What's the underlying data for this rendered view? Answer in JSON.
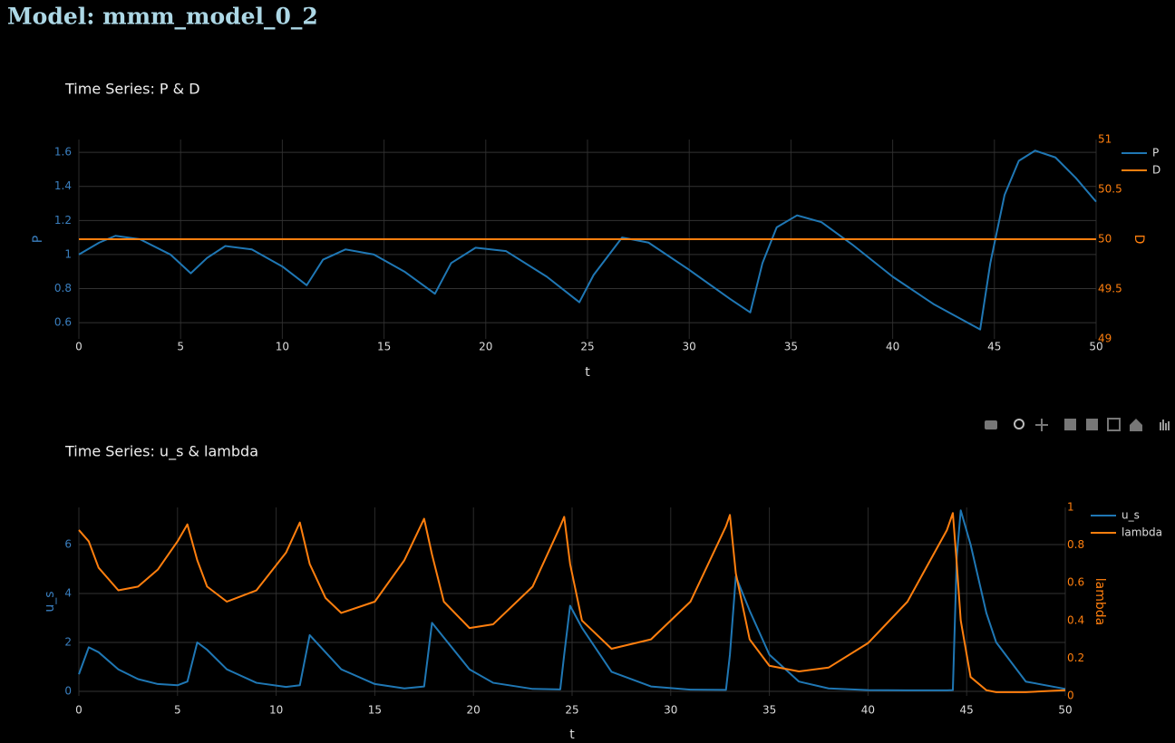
{
  "title": "Model: mmm_model_0_2",
  "chart_data": [
    {
      "type": "line",
      "title": "Time Series: P & D",
      "xlabel": "t",
      "ylabel": "P",
      "y2label": "D",
      "x": [
        0,
        1,
        1.8,
        3,
        4.5,
        5.5,
        6.3,
        7.2,
        8.5,
        10,
        11.2,
        12,
        13.1,
        14.5,
        16,
        17.5,
        18.3,
        19.5,
        21,
        23,
        24.6,
        25.3,
        26.7,
        28,
        30,
        32,
        33,
        33.6,
        34.3,
        35.3,
        36.5,
        38,
        40,
        42,
        44.3,
        44.8,
        45.5,
        46.2,
        47,
        48,
        49,
        50
      ],
      "series": [
        {
          "name": "P",
          "color": "#1f77b4",
          "axis": "y",
          "values": [
            1.0,
            1.07,
            1.11,
            1.09,
            1.0,
            0.89,
            0.98,
            1.05,
            1.03,
            0.93,
            0.82,
            0.97,
            1.03,
            1.0,
            0.9,
            0.77,
            0.95,
            1.04,
            1.02,
            0.87,
            0.72,
            0.88,
            1.1,
            1.07,
            0.91,
            0.74,
            0.66,
            0.95,
            1.16,
            1.23,
            1.19,
            1.06,
            0.87,
            0.71,
            0.56,
            0.95,
            1.35,
            1.55,
            1.61,
            1.57,
            1.45,
            1.31
          ]
        },
        {
          "name": "D",
          "color": "#ff7f0e",
          "axis": "y2",
          "values": [
            50,
            50,
            50,
            50,
            50,
            50,
            50,
            50,
            50,
            50,
            50,
            50,
            50,
            50,
            50,
            50,
            50,
            50,
            50,
            50,
            50,
            50,
            50,
            50,
            50,
            50,
            50,
            50,
            50,
            50,
            50,
            50,
            50,
            50,
            50,
            50,
            50,
            50,
            50,
            50,
            50,
            50
          ]
        }
      ],
      "xlim": [
        0,
        50
      ],
      "xticks": [
        0,
        5,
        10,
        15,
        20,
        25,
        30,
        35,
        40,
        45,
        50
      ],
      "ylim": [
        0.505,
        1.675
      ],
      "yticks": [
        0.6,
        0.8,
        1,
        1.2,
        1.4,
        1.6
      ],
      "y2lim": [
        49,
        51
      ],
      "y2ticks": [
        49,
        49.5,
        50,
        50.5,
        51
      ],
      "grid": true,
      "legend": "outside-right"
    },
    {
      "type": "line",
      "title": "Time Series: u_s & lambda",
      "xlabel": "t",
      "ylabel": "u_s",
      "y2label": "lambda",
      "x": [
        0,
        0.5,
        1,
        2,
        3,
        4,
        5,
        5.5,
        6,
        6.5,
        7.5,
        9,
        10.5,
        11.2,
        11.7,
        12.5,
        13.3,
        15,
        16.5,
        17.5,
        17.9,
        18.5,
        19.8,
        21,
        23,
        24.4,
        24.6,
        24.9,
        25.5,
        27,
        29,
        31,
        32.8,
        33,
        33.3,
        34,
        35,
        36.5,
        38,
        40,
        42,
        44,
        44.3,
        44.5,
        44.7,
        45.2,
        46,
        46.5,
        48,
        50
      ],
      "series": [
        {
          "name": "u_s",
          "color": "#1f77b4",
          "axis": "y",
          "values": [
            0.7,
            1.8,
            1.6,
            0.9,
            0.5,
            0.3,
            0.25,
            0.4,
            2.0,
            1.7,
            0.9,
            0.35,
            0.18,
            0.25,
            2.3,
            1.6,
            0.9,
            0.3,
            0.12,
            0.2,
            2.8,
            2.2,
            0.9,
            0.35,
            0.1,
            0.08,
            1.5,
            3.5,
            2.6,
            0.8,
            0.2,
            0.07,
            0.06,
            1.5,
            4.7,
            3.3,
            1.5,
            0.4,
            0.12,
            0.05,
            0.04,
            0.04,
            0.05,
            5.5,
            7.4,
            6.0,
            3.2,
            2.0,
            0.4,
            0.1
          ]
        },
        {
          "name": "lambda",
          "color": "#ff7f0e",
          "axis": "y2",
          "values": [
            0.88,
            0.82,
            0.68,
            0.56,
            0.58,
            0.67,
            0.82,
            0.91,
            0.72,
            0.58,
            0.5,
            0.56,
            0.76,
            0.92,
            0.7,
            0.52,
            0.44,
            0.5,
            0.72,
            0.94,
            0.75,
            0.5,
            0.36,
            0.38,
            0.58,
            0.9,
            0.95,
            0.7,
            0.4,
            0.25,
            0.3,
            0.5,
            0.9,
            0.96,
            0.65,
            0.3,
            0.16,
            0.13,
            0.15,
            0.28,
            0.5,
            0.88,
            0.97,
            0.7,
            0.4,
            0.1,
            0.03,
            0.02,
            0.02,
            0.03
          ]
        }
      ],
      "xlim": [
        0,
        50
      ],
      "xticks": [
        0,
        5,
        10,
        15,
        20,
        25,
        30,
        35,
        40,
        45,
        50
      ],
      "ylim": [
        -0.185,
        7.52
      ],
      "yticks": [
        0,
        2,
        4,
        6
      ],
      "y2lim": [
        0,
        1
      ],
      "y2ticks": [
        0,
        0.2,
        0.4,
        0.6,
        0.8,
        1
      ],
      "grid": true,
      "legend": "outside-right"
    }
  ]
}
